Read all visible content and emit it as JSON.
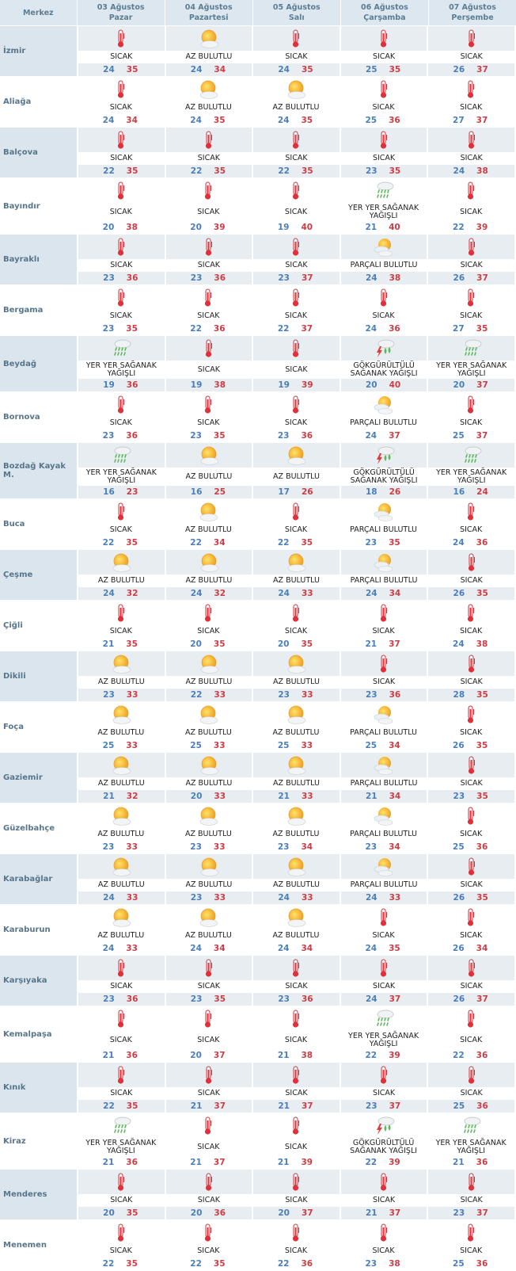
{
  "header": {
    "center_label": "Merkez",
    "days": [
      {
        "date": "03 Ağustos",
        "weekday": "Pazar"
      },
      {
        "date": "04 Ağustos",
        "weekday": "Pazartesi"
      },
      {
        "date": "05 Ağustos",
        "weekday": "Salı"
      },
      {
        "date": "06 Ağustos",
        "weekday": "Çarşamba"
      },
      {
        "date": "07 Ağustos",
        "weekday": "Perşembe"
      }
    ]
  },
  "conditions": {
    "S": {
      "label": "SICAK",
      "icon": "thermometer-icon"
    },
    "AB": {
      "label": "AZ BULUTLU",
      "icon": "sun-cloud-icon"
    },
    "PB": {
      "label": "PARÇALI BULUTLU",
      "icon": "partly-cloudy-icon"
    },
    "YY": {
      "label": "YER YER SAĞANAK YAĞIŞLI",
      "icon": "rain-shower-icon"
    },
    "GS": {
      "label": "GÖKGÜRÜLTÜLÜ SAĞANAK YAĞIŞLI",
      "icon": "thunderstorm-icon"
    }
  },
  "colors": {
    "min_temp": "#4a7fb8",
    "max_temp": "#cc3d45",
    "header_bg": "#dde7ef"
  },
  "rows": [
    {
      "name": "İzmir",
      "days": [
        {
          "c": "S",
          "min": 24,
          "max": 35
        },
        {
          "c": "AB",
          "min": 24,
          "max": 34
        },
        {
          "c": "S",
          "min": 24,
          "max": 35
        },
        {
          "c": "S",
          "min": 25,
          "max": 35
        },
        {
          "c": "S",
          "min": 26,
          "max": 37
        }
      ]
    },
    {
      "name": "Aliağa",
      "days": [
        {
          "c": "S",
          "min": 24,
          "max": 34
        },
        {
          "c": "AB",
          "min": 24,
          "max": 35
        },
        {
          "c": "AB",
          "min": 24,
          "max": 35
        },
        {
          "c": "S",
          "min": 25,
          "max": 36
        },
        {
          "c": "S",
          "min": 27,
          "max": 37
        }
      ]
    },
    {
      "name": "Balçova",
      "days": [
        {
          "c": "S",
          "min": 22,
          "max": 35
        },
        {
          "c": "S",
          "min": 22,
          "max": 35
        },
        {
          "c": "S",
          "min": 22,
          "max": 35
        },
        {
          "c": "S",
          "min": 23,
          "max": 35
        },
        {
          "c": "S",
          "min": 24,
          "max": 38
        }
      ]
    },
    {
      "name": "Bayındır",
      "days": [
        {
          "c": "S",
          "min": 20,
          "max": 38
        },
        {
          "c": "S",
          "min": 20,
          "max": 39
        },
        {
          "c": "S",
          "min": 19,
          "max": 40
        },
        {
          "c": "YY",
          "min": 21,
          "max": 40
        },
        {
          "c": "S",
          "min": 22,
          "max": 39
        }
      ]
    },
    {
      "name": "Bayraklı",
      "days": [
        {
          "c": "S",
          "min": 23,
          "max": 36
        },
        {
          "c": "S",
          "min": 23,
          "max": 36
        },
        {
          "c": "S",
          "min": 23,
          "max": 37
        },
        {
          "c": "PB",
          "min": 24,
          "max": 38
        },
        {
          "c": "S",
          "min": 26,
          "max": 37
        }
      ]
    },
    {
      "name": "Bergama",
      "days": [
        {
          "c": "S",
          "min": 23,
          "max": 35
        },
        {
          "c": "S",
          "min": 22,
          "max": 36
        },
        {
          "c": "S",
          "min": 22,
          "max": 37
        },
        {
          "c": "S",
          "min": 24,
          "max": 36
        },
        {
          "c": "S",
          "min": 27,
          "max": 35
        }
      ]
    },
    {
      "name": "Beydağ",
      "days": [
        {
          "c": "YY",
          "min": 19,
          "max": 36
        },
        {
          "c": "S",
          "min": 19,
          "max": 38
        },
        {
          "c": "S",
          "min": 19,
          "max": 39
        },
        {
          "c": "GS",
          "min": 20,
          "max": 40
        },
        {
          "c": "YY",
          "min": 20,
          "max": 37
        }
      ]
    },
    {
      "name": "Bornova",
      "days": [
        {
          "c": "S",
          "min": 23,
          "max": 36
        },
        {
          "c": "S",
          "min": 23,
          "max": 35
        },
        {
          "c": "S",
          "min": 23,
          "max": 36
        },
        {
          "c": "PB",
          "min": 24,
          "max": 37
        },
        {
          "c": "S",
          "min": 25,
          "max": 37
        }
      ]
    },
    {
      "name": "Bozdağ Kayak M.",
      "days": [
        {
          "c": "YY",
          "min": 16,
          "max": 23
        },
        {
          "c": "AB",
          "min": 16,
          "max": 25
        },
        {
          "c": "AB",
          "min": 17,
          "max": 26
        },
        {
          "c": "GS",
          "min": 18,
          "max": 26
        },
        {
          "c": "YY",
          "min": 16,
          "max": 24
        }
      ]
    },
    {
      "name": "Buca",
      "days": [
        {
          "c": "S",
          "min": 22,
          "max": 35
        },
        {
          "c": "AB",
          "min": 22,
          "max": 34
        },
        {
          "c": "S",
          "min": 22,
          "max": 35
        },
        {
          "c": "PB",
          "min": 23,
          "max": 35
        },
        {
          "c": "S",
          "min": 24,
          "max": 36
        }
      ]
    },
    {
      "name": "Çeşme",
      "days": [
        {
          "c": "AB",
          "min": 24,
          "max": 32
        },
        {
          "c": "AB",
          "min": 24,
          "max": 32
        },
        {
          "c": "AB",
          "min": 24,
          "max": 33
        },
        {
          "c": "PB",
          "min": 24,
          "max": 34
        },
        {
          "c": "S",
          "min": 26,
          "max": 35
        }
      ]
    },
    {
      "name": "Çiğli",
      "days": [
        {
          "c": "S",
          "min": 21,
          "max": 35
        },
        {
          "c": "S",
          "min": 20,
          "max": 35
        },
        {
          "c": "S",
          "min": 20,
          "max": 35
        },
        {
          "c": "S",
          "min": 21,
          "max": 37
        },
        {
          "c": "S",
          "min": 24,
          "max": 38
        }
      ]
    },
    {
      "name": "Dikili",
      "days": [
        {
          "c": "AB",
          "min": 23,
          "max": 33
        },
        {
          "c": "AB",
          "min": 22,
          "max": 33
        },
        {
          "c": "AB",
          "min": 23,
          "max": 33
        },
        {
          "c": "S",
          "min": 23,
          "max": 36
        },
        {
          "c": "S",
          "min": 28,
          "max": 35
        }
      ]
    },
    {
      "name": "Foça",
      "days": [
        {
          "c": "AB",
          "min": 25,
          "max": 33
        },
        {
          "c": "AB",
          "min": 25,
          "max": 33
        },
        {
          "c": "AB",
          "min": 25,
          "max": 33
        },
        {
          "c": "PB",
          "min": 25,
          "max": 34
        },
        {
          "c": "S",
          "min": 26,
          "max": 35
        }
      ]
    },
    {
      "name": "Gaziemir",
      "days": [
        {
          "c": "AB",
          "min": 21,
          "max": 32
        },
        {
          "c": "AB",
          "min": 20,
          "max": 33
        },
        {
          "c": "AB",
          "min": 21,
          "max": 33
        },
        {
          "c": "PB",
          "min": 21,
          "max": 34
        },
        {
          "c": "S",
          "min": 23,
          "max": 35
        }
      ]
    },
    {
      "name": "Güzelbahçe",
      "days": [
        {
          "c": "AB",
          "min": 23,
          "max": 33
        },
        {
          "c": "AB",
          "min": 23,
          "max": 33
        },
        {
          "c": "AB",
          "min": 23,
          "max": 34
        },
        {
          "c": "PB",
          "min": 23,
          "max": 34
        },
        {
          "c": "S",
          "min": 25,
          "max": 36
        }
      ]
    },
    {
      "name": "Karabağlar",
      "days": [
        {
          "c": "AB",
          "min": 24,
          "max": 33
        },
        {
          "c": "AB",
          "min": 23,
          "max": 33
        },
        {
          "c": "AB",
          "min": 24,
          "max": 33
        },
        {
          "c": "PB",
          "min": 24,
          "max": 33
        },
        {
          "c": "S",
          "min": 26,
          "max": 35
        }
      ]
    },
    {
      "name": "Karaburun",
      "days": [
        {
          "c": "AB",
          "min": 24,
          "max": 33
        },
        {
          "c": "AB",
          "min": 24,
          "max": 34
        },
        {
          "c": "AB",
          "min": 24,
          "max": 34
        },
        {
          "c": "S",
          "min": 24,
          "max": 35
        },
        {
          "c": "S",
          "min": 26,
          "max": 34
        }
      ]
    },
    {
      "name": "Karşıyaka",
      "days": [
        {
          "c": "S",
          "min": 23,
          "max": 36
        },
        {
          "c": "S",
          "min": 23,
          "max": 35
        },
        {
          "c": "S",
          "min": 23,
          "max": 36
        },
        {
          "c": "S",
          "min": 24,
          "max": 37
        },
        {
          "c": "S",
          "min": 26,
          "max": 37
        }
      ]
    },
    {
      "name": "Kemalpaşa",
      "days": [
        {
          "c": "S",
          "min": 21,
          "max": 36
        },
        {
          "c": "S",
          "min": 20,
          "max": 37
        },
        {
          "c": "S",
          "min": 21,
          "max": 38
        },
        {
          "c": "YY",
          "min": 22,
          "max": 39
        },
        {
          "c": "S",
          "min": 22,
          "max": 36
        }
      ]
    },
    {
      "name": "Kınık",
      "days": [
        {
          "c": "S",
          "min": 22,
          "max": 35
        },
        {
          "c": "S",
          "min": 21,
          "max": 37
        },
        {
          "c": "S",
          "min": 21,
          "max": 37
        },
        {
          "c": "S",
          "min": 23,
          "max": 37
        },
        {
          "c": "S",
          "min": 25,
          "max": 36
        }
      ]
    },
    {
      "name": "Kiraz",
      "days": [
        {
          "c": "YY",
          "min": 21,
          "max": 36
        },
        {
          "c": "S",
          "min": 21,
          "max": 37
        },
        {
          "c": "S",
          "min": 21,
          "max": 39
        },
        {
          "c": "GS",
          "min": 22,
          "max": 39
        },
        {
          "c": "YY",
          "min": 21,
          "max": 36
        }
      ]
    },
    {
      "name": "Menderes",
      "days": [
        {
          "c": "S",
          "min": 20,
          "max": 35
        },
        {
          "c": "S",
          "min": 20,
          "max": 36
        },
        {
          "c": "S",
          "min": 20,
          "max": 37
        },
        {
          "c": "S",
          "min": 21,
          "max": 37
        },
        {
          "c": "S",
          "min": 23,
          "max": 37
        }
      ]
    },
    {
      "name": "Menemen",
      "days": [
        {
          "c": "S",
          "min": 22,
          "max": 35
        },
        {
          "c": "S",
          "min": 22,
          "max": 35
        },
        {
          "c": "S",
          "min": 22,
          "max": 36
        },
        {
          "c": "S",
          "min": 23,
          "max": 38
        },
        {
          "c": "S",
          "min": 25,
          "max": 36
        }
      ]
    }
  ]
}
